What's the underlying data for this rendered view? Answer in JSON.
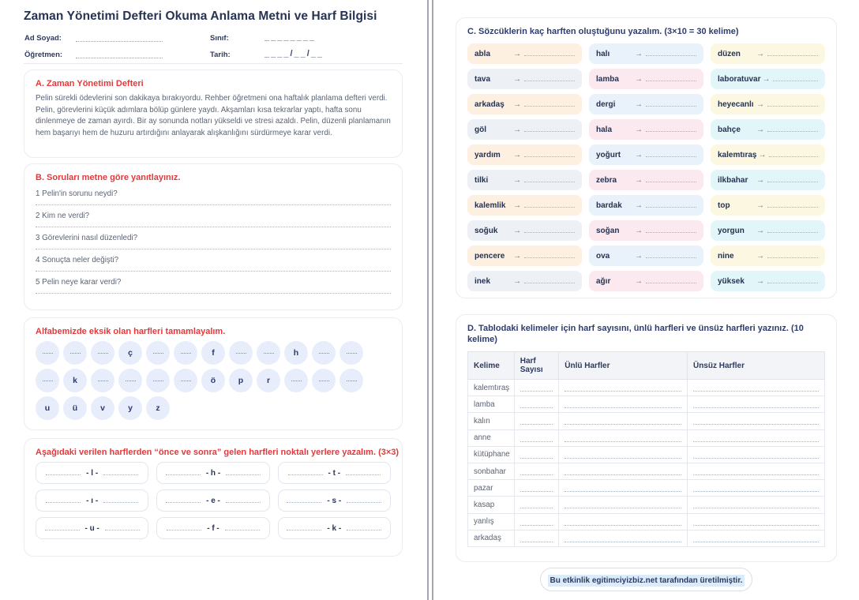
{
  "page_left": {
    "title": "Zaman Yönetimi Defteri Okuma Anlama Metni ve Harf Bilgisi",
    "form": {
      "name_label": "Ad Soyad:",
      "teacher_label": "Öğretmen:",
      "class_label": "Sınıf:",
      "class_value": "________",
      "date_label": "Tarih:",
      "date_value": "____/__/__"
    },
    "section_a": {
      "heading": "A. Zaman Yönetimi Defteri",
      "text": "Pelin sürekli ödevlerini son dakikaya bırakıyordu. Rehber öğretmeni ona haftalık planlama defteri verdi. Pelin, görevlerini küçük adımlara bölüp günlere yaydı. Akşamları kısa tekrarlar yaptı, hafta sonu dinlenmeye de zaman ayırdı. Bir ay sonunda notları yükseldi ve stresi azaldı. Pelin, düzenli planlamanın hem başarıyı hem de huzuru artırdığını anlayarak alışkanlığını sürdürmeye karar verdi."
    },
    "section_b": {
      "heading": "B. Soruları metne göre yanıtlayınız.",
      "questions": [
        "1 Pelin'in sorunu neydi?",
        "2 Kim ne verdi?",
        "3 Görevlerini nasıl düzenledi?",
        "4 Sonuçta neler değişti?",
        "5 Pelin neye karar verdi?"
      ]
    },
    "alphabet": {
      "heading": "Alfabemizde eksik olan harfleri tamamlayalım.",
      "rows": [
        [
          "",
          "",
          "",
          "ç",
          "",
          "",
          "f",
          "",
          "",
          "h",
          "",
          ""
        ],
        [
          "",
          "k",
          "",
          "",
          "",
          "",
          "ö",
          "p",
          "r",
          "",
          "",
          ""
        ],
        [
          "u",
          "ü",
          "v",
          "y",
          "z"
        ]
      ]
    },
    "before_after": {
      "heading": "Aşağıdaki verilen harflerden “önce ve sonra” gelen harfleri noktalı yerlere yazalım. (3×3)",
      "rows": [
        [
          "l",
          "h",
          "t"
        ],
        [
          "ı",
          "e",
          "s"
        ],
        [
          "u",
          "f",
          "k"
        ]
      ]
    }
  },
  "page_right": {
    "section_c": {
      "heading": "C. Sözcüklerin kaç harften oluştuğunu yazalım. (3×10 = 30 kelime)",
      "arrow_icon": "→",
      "rows": [
        [
          "abla",
          "halı",
          "düzen"
        ],
        [
          "tava",
          "lamba",
          "laboratuvar"
        ],
        [
          "arkadaş",
          "dergi",
          "heyecanlı"
        ],
        [
          "göl",
          "hala",
          "bahçe"
        ],
        [
          "yardım",
          "yoğurt",
          "kalemtıraş"
        ],
        [
          "tilki",
          "zebra",
          "ilkbahar"
        ],
        [
          "kalemlik",
          "bardak",
          "top"
        ],
        [
          "soğuk",
          "soğan",
          "yorgun"
        ],
        [
          "pencere",
          "ova",
          "nine"
        ],
        [
          "inek",
          "ağır",
          "yüksek"
        ]
      ],
      "row_color_cycle": [
        [
          "peach",
          "blue",
          "yellow"
        ],
        [
          "gray",
          "pink",
          "cyan"
        ]
      ]
    },
    "section_d": {
      "heading": "D. Tablodaki kelimeler için harf sayısını, ünlü harfleri ve ünsüz harfleri yazınız. (10 kelime)",
      "columns": [
        "Kelime",
        "Harf Sayısı",
        "Ünlü Harfler",
        "Ünsüz Harfler"
      ],
      "words": [
        "kalemtıraş",
        "lamba",
        "kalın",
        "anne",
        "kütüphane",
        "sonbahar",
        "pazar",
        "kasap",
        "yanlış",
        "arkadaş"
      ]
    },
    "footer": {
      "text": "Bu etkinlik egitimciyizbiz.net tarafından üretilmiştir."
    }
  },
  "colors": {
    "accent_red": "#e23a3c",
    "heading_blue": "#2e3c6e",
    "text_navy": "#273352",
    "text_body": "#5a6375",
    "chip_peach": "#fdf0e1",
    "chip_blue": "#e9f1fb",
    "chip_yellow": "#fcf7e0",
    "chip_gray": "#edf0f5",
    "chip_pink": "#fbe9ef",
    "chip_cyan": "#e2f6f9",
    "circle_bg": "#e8edfb",
    "footer_highlight": "#dcebfc"
  }
}
